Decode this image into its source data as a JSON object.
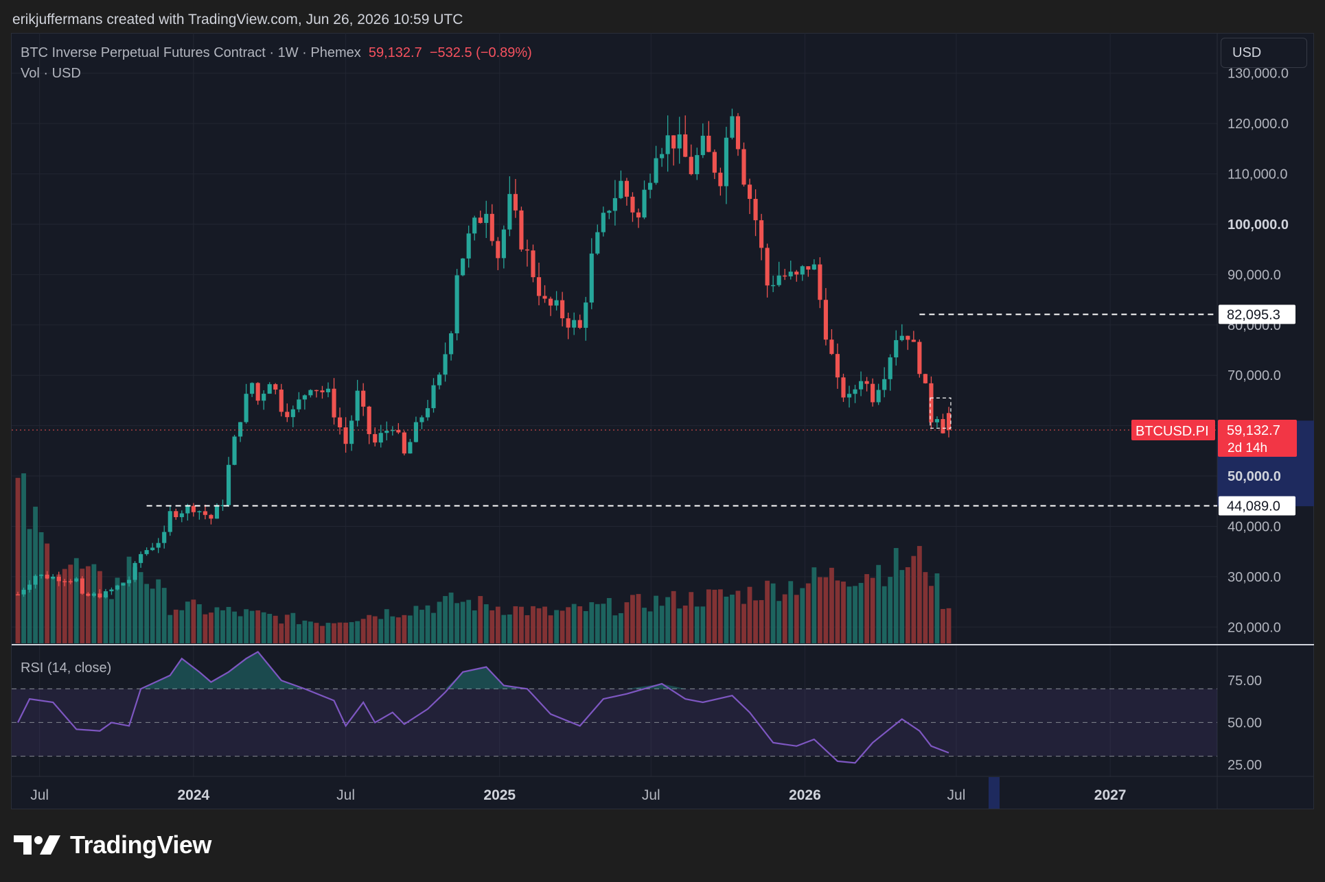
{
  "header": {
    "credit": "erikjuffermans created with TradingView.com, Jun 26, 2026 10:59 UTC"
  },
  "legend": {
    "symbol": "BTC Inverse Perpetual Futures Contract · 1W · Phemex",
    "last": "59,132.7",
    "change": "−532.5 (−0.89%)",
    "volume": "Vol · USD"
  },
  "currency_selector": "USD",
  "brand": {
    "name": "TradingView",
    "icon": "tradingview-logo-icon"
  },
  "colors": {
    "up": "#26a69a",
    "down": "#ef5350",
    "background": "#161a25",
    "rsi_line": "#7e57c2",
    "current_price_badge": "#f23645",
    "axis_highlight": "#1e2a5e"
  },
  "chart_data": [
    {
      "type": "candlestick",
      "title": "BTC Inverse Perpetual Futures Contract · 1W · Phemex",
      "ylim": [
        16500,
        138000
      ],
      "y_ticks": [
        "20,000.0",
        "30,000.0",
        "40,000.0",
        "50,000.0",
        "60,000.0",
        "70,000.0",
        "80,000.0",
        "90,000.0",
        "100,000.0",
        "110,000.0",
        "120,000.0",
        "130,000.0"
      ],
      "x_ticks": [
        "Jul",
        "2024",
        "Jul",
        "2025",
        "Jul",
        "2026",
        "Jul",
        "2027"
      ],
      "grid": true,
      "series": [
        {
          "name": "BTCUSD.PI",
          "anchors": [
            [
              "2023-06-05",
              26500
            ],
            [
              "2023-06-26",
              30300
            ],
            [
              "2023-08-14",
              29400
            ],
            [
              "2023-08-21",
              26000
            ],
            [
              "2023-09-18",
              26600
            ],
            [
              "2023-10-16",
              29500
            ],
            [
              "2023-10-30",
              34500
            ],
            [
              "2023-11-27",
              38000
            ],
            [
              "2023-12-04",
              42500
            ],
            [
              "2024-01-01",
              43900
            ],
            [
              "2024-01-22",
              41600
            ],
            [
              "2024-02-05",
              45000
            ],
            [
              "2024-02-12",
              51800
            ],
            [
              "2024-02-26",
              62000
            ],
            [
              "2024-03-11",
              68500
            ],
            [
              "2024-03-18",
              65000
            ],
            [
              "2024-04-01",
              69500
            ],
            [
              "2024-04-15",
              64000
            ],
            [
              "2024-04-29",
              62500
            ],
            [
              "2024-05-20",
              68500
            ],
            [
              "2024-06-10",
              66000
            ],
            [
              "2024-07-01",
              56500
            ],
            [
              "2024-07-15",
              66000
            ],
            [
              "2024-07-29",
              58500
            ],
            [
              "2024-08-05",
              56500
            ],
            [
              "2024-08-26",
              60500
            ],
            [
              "2024-09-09",
              54000
            ],
            [
              "2024-09-30",
              62000
            ],
            [
              "2024-10-21",
              69000
            ],
            [
              "2024-11-04",
              80000
            ],
            [
              "2024-11-11",
              91000
            ],
            [
              "2024-11-25",
              97000
            ],
            [
              "2024-12-16",
              104000
            ],
            [
              "2024-12-30",
              94000
            ],
            [
              "2025-01-13",
              104000
            ],
            [
              "2025-01-27",
              97000
            ],
            [
              "2025-02-24",
              84000
            ],
            [
              "2025-03-10",
              83000
            ],
            [
              "2025-04-07",
              79000
            ],
            [
              "2025-04-21",
              93000
            ],
            [
              "2025-05-12",
              104000
            ],
            [
              "2025-05-26",
              108000
            ],
            [
              "2025-06-16",
              101000
            ],
            [
              "2025-07-07",
              116000
            ],
            [
              "2025-07-28",
              117000
            ],
            [
              "2025-08-18",
              111000
            ],
            [
              "2025-09-01",
              115000
            ],
            [
              "2025-09-22",
              110000
            ],
            [
              "2025-10-06",
              124000
            ],
            [
              "2025-10-20",
              110000
            ],
            [
              "2025-11-03",
              101000
            ],
            [
              "2025-11-17",
              88000
            ],
            [
              "2025-12-01",
              90000
            ],
            [
              "2025-12-22",
              89000
            ],
            [
              "2026-01-05",
              92000
            ],
            [
              "2026-01-12",
              91000
            ],
            [
              "2026-01-26",
              79000
            ],
            [
              "2026-02-09",
              68000
            ],
            [
              "2026-02-23",
              65000
            ],
            [
              "2026-03-09",
              70000
            ],
            [
              "2026-03-23",
              66000
            ],
            [
              "2026-04-06",
              71000
            ],
            [
              "2026-04-20",
              78000
            ],
            [
              "2026-05-04",
              78500
            ],
            [
              "2026-05-18",
              72000
            ],
            [
              "2026-06-01",
              61500
            ],
            [
              "2026-06-08",
              62500
            ],
            [
              "2026-06-15",
              59700
            ],
            [
              "2026-06-22",
              59132.7
            ]
          ]
        }
      ],
      "annotations": [
        {
          "type": "horizontal-line",
          "label": "82,095.3",
          "y": 82095.3,
          "from": "2026-05-18"
        },
        {
          "type": "horizontal-line",
          "label": "44,089.0",
          "y": 44089.0,
          "from": "2023-11-06"
        },
        {
          "type": "last-price",
          "label": "BTCUSD.PI",
          "price": "59,132.7",
          "countdown": "2d 14h",
          "y": 59132.7
        },
        {
          "type": "axis-label",
          "label": "100,000.0",
          "y": 100000
        },
        {
          "type": "axis-label",
          "label": "50,000.0",
          "y": 50000
        }
      ]
    },
    {
      "type": "bar",
      "title": "Vol · USD",
      "description": "Weekly volume histogram colored by candle direction",
      "relative_levels_by_period": [
        [
          "2023-06-05",
          1.0
        ],
        [
          "2023-07-10",
          0.6
        ],
        [
          "2023-08-14",
          0.5
        ],
        [
          "2023-09-25",
          0.35
        ],
        [
          "2023-10-23",
          0.55
        ],
        [
          "2023-12-04",
          0.25
        ],
        [
          "2024-02-26",
          0.2
        ],
        [
          "2024-06-03",
          0.14
        ],
        [
          "2024-11-11",
          0.28
        ],
        [
          "2025-03-03",
          0.2
        ],
        [
          "2025-07-14",
          0.28
        ],
        [
          "2025-10-13",
          0.32
        ],
        [
          "2026-02-09",
          0.45
        ],
        [
          "2026-05-25",
          0.55
        ],
        [
          "2026-06-22",
          0.2
        ]
      ]
    },
    {
      "type": "line",
      "title": "RSI (14, close)",
      "ylim": [
        18,
        95
      ],
      "y_ticks": [
        "25.00",
        "50.00",
        "75.00"
      ],
      "levels": [
        30,
        50,
        70
      ],
      "series": [
        {
          "name": "RSI",
          "points": [
            [
              "2023-06-05",
              50
            ],
            [
              "2023-06-19",
              64
            ],
            [
              "2023-07-17",
              62
            ],
            [
              "2023-08-14",
              46
            ],
            [
              "2023-09-11",
              45
            ],
            [
              "2023-09-25",
              50
            ],
            [
              "2023-10-16",
              48
            ],
            [
              "2023-10-30",
              70
            ],
            [
              "2023-12-04",
              78
            ],
            [
              "2023-12-18",
              88
            ],
            [
              "2024-01-08",
              80
            ],
            [
              "2024-01-22",
              74
            ],
            [
              "2024-02-12",
              80
            ],
            [
              "2024-03-04",
              88
            ],
            [
              "2024-03-18",
              92
            ],
            [
              "2024-04-15",
              75
            ],
            [
              "2024-05-13",
              70
            ],
            [
              "2024-06-17",
              63
            ],
            [
              "2024-07-01",
              48
            ],
            [
              "2024-07-22",
              62
            ],
            [
              "2024-08-05",
              50
            ],
            [
              "2024-08-26",
              56
            ],
            [
              "2024-09-09",
              49
            ],
            [
              "2024-10-07",
              58
            ],
            [
              "2024-10-28",
              68
            ],
            [
              "2024-11-18",
              80
            ],
            [
              "2024-12-16",
              83
            ],
            [
              "2025-01-06",
              72
            ],
            [
              "2025-02-03",
              70
            ],
            [
              "2025-03-03",
              55
            ],
            [
              "2025-04-07",
              48
            ],
            [
              "2025-05-05",
              64
            ],
            [
              "2025-06-02",
              67
            ],
            [
              "2025-07-14",
              73
            ],
            [
              "2025-08-11",
              64
            ],
            [
              "2025-09-01",
              62
            ],
            [
              "2025-10-06",
              66
            ],
            [
              "2025-10-27",
              56
            ],
            [
              "2025-11-24",
              38
            ],
            [
              "2025-12-22",
              36
            ],
            [
              "2026-01-12",
              40
            ],
            [
              "2026-02-09",
              27
            ],
            [
              "2026-03-02",
              26
            ],
            [
              "2026-03-23",
              38
            ],
            [
              "2026-04-27",
              52
            ],
            [
              "2026-05-18",
              45
            ],
            [
              "2026-06-01",
              36
            ],
            [
              "2026-06-22",
              32
            ]
          ]
        }
      ]
    }
  ]
}
